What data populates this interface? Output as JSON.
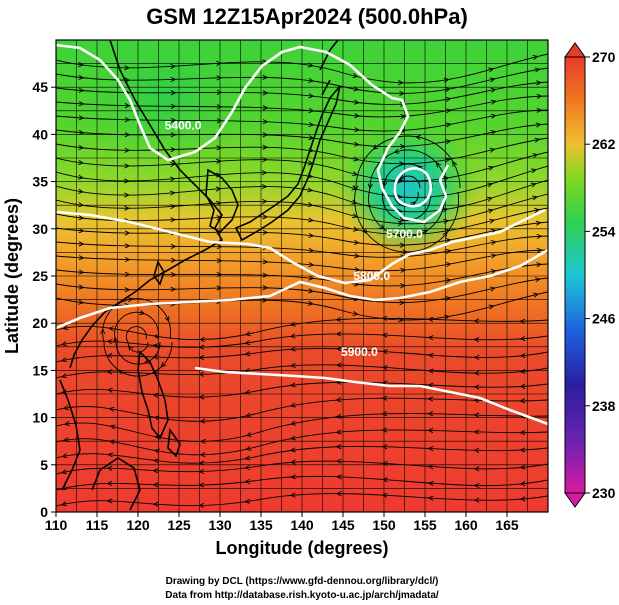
{
  "title": "GSM 12Z15Apr2024 (500.0hPa)",
  "x_axis": {
    "label": "Longitude (degrees)",
    "range": [
      110,
      170
    ],
    "ticks": [
      "110",
      "115",
      "120",
      "125",
      "130",
      "135",
      "140",
      "145",
      "150",
      "155",
      "160",
      "165"
    ]
  },
  "y_axis": {
    "label": "Latitude  (degrees)",
    "range": [
      0,
      50
    ],
    "ticks": [
      "0",
      "5",
      "10",
      "15",
      "20",
      "25",
      "30",
      "35",
      "40",
      "45"
    ]
  },
  "colorbar": {
    "ticks": [
      "230",
      "238",
      "246",
      "254",
      "262",
      "270"
    ],
    "min": 230,
    "max": 270,
    "colors": [
      "#d81ba0",
      "#2a1fa0",
      "#1e5fe0",
      "#1dc7d6",
      "#30d050",
      "#7cd820",
      "#f0c030",
      "#f07820",
      "#e83a2a"
    ]
  },
  "contours": [
    {
      "label": "5400.0",
      "lon": 125.5,
      "lat": 40.5
    },
    {
      "label": "5700.0",
      "lon": 152.5,
      "lat": 29.0
    },
    {
      "label": "5800.0",
      "lon": 148.5,
      "lat": 24.6
    },
    {
      "label": "5900.0",
      "lon": 147.0,
      "lat": 16.5
    }
  ],
  "credits": {
    "line1": "Drawing by DCL (https://www.gfd-dennou.org/library/dcl/)",
    "line2": "Data from http://database.rish.kyoto-u.ac.jp/arch/jmadata/"
  }
}
